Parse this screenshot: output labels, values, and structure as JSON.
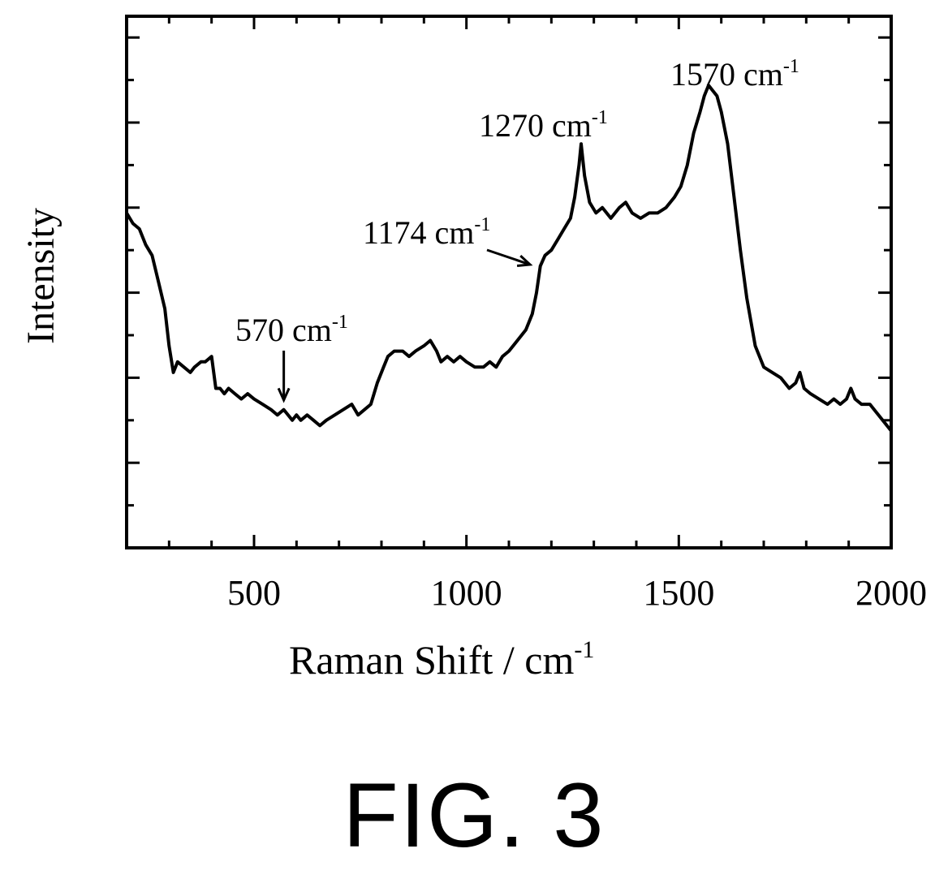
{
  "figure": {
    "label": "FIG. 3"
  },
  "chart_data": {
    "type": "line",
    "xlabel": "Raman Shift / cm",
    "xlabel_superscript": "-1",
    "ylabel": "Intensity",
    "xlim": [
      200,
      2000
    ],
    "ylim": [
      0,
      100
    ],
    "x_ticks": [
      500,
      1000,
      1500,
      2000
    ],
    "y_ticks_shown_without_labels": true,
    "grid": false,
    "line_color": "#000000",
    "annotations": [
      {
        "id": "570",
        "text": "570 cm",
        "sup": "-1",
        "x": 570,
        "arrow": "down"
      },
      {
        "id": "1174",
        "text": "1174 cm",
        "sup": "-1",
        "x": 1174,
        "arrow": "diagonal"
      },
      {
        "id": "1270",
        "text": "1270 cm",
        "sup": "-1",
        "x": 1270,
        "arrow": "none"
      },
      {
        "id": "1570",
        "text": "1570 cm",
        "sup": "-1",
        "x": 1570,
        "arrow": "none"
      }
    ],
    "series": [
      {
        "x": [
          200,
          215,
          230,
          245,
          260,
          275,
          290,
          300,
          310,
          320,
          335,
          350,
          360,
          375,
          385,
          400,
          410,
          420,
          430,
          440,
          455,
          470,
          485,
          500,
          520,
          540,
          555,
          570,
          580,
          590,
          600,
          610,
          625,
          640,
          655,
          670,
          690,
          710,
          730,
          745,
          760,
          775,
          790,
          805,
          815,
          830,
          850,
          865,
          880,
          900,
          915,
          930,
          940,
          955,
          970,
          985,
          1000,
          1020,
          1040,
          1055,
          1070,
          1085,
          1100,
          1120,
          1140,
          1155,
          1165,
          1174,
          1185,
          1200,
          1215,
          1230,
          1245,
          1255,
          1265,
          1270,
          1278,
          1290,
          1305,
          1320,
          1340,
          1360,
          1375,
          1390,
          1410,
          1430,
          1450,
          1470,
          1490,
          1505,
          1520,
          1535,
          1550,
          1560,
          1570,
          1580,
          1590,
          1600,
          1615,
          1630,
          1645,
          1660,
          1680,
          1700,
          1720,
          1740,
          1760,
          1775,
          1785,
          1795,
          1810,
          1830,
          1850,
          1865,
          1880,
          1895,
          1905,
          1915,
          1930,
          1950,
          1970,
          1990,
          2000
        ],
        "y": [
          63,
          61,
          60,
          57,
          55,
          50,
          45,
          38,
          33,
          35,
          34,
          33,
          34,
          35,
          35,
          36,
          30,
          30,
          29,
          30,
          29,
          28,
          29,
          28,
          27,
          26,
          25,
          26,
          25,
          24,
          25,
          24,
          25,
          24,
          23,
          24,
          25,
          26,
          27,
          25,
          26,
          27,
          31,
          34,
          36,
          37,
          37,
          36,
          37,
          38,
          39,
          37,
          35,
          36,
          35,
          36,
          35,
          34,
          34,
          35,
          34,
          36,
          37,
          39,
          41,
          44,
          48,
          53,
          55,
          56,
          58,
          60,
          62,
          66,
          72,
          76,
          70,
          65,
          63,
          64,
          62,
          64,
          65,
          63,
          62,
          63,
          63,
          64,
          66,
          68,
          72,
          78,
          82,
          85,
          87,
          86,
          85,
          82,
          76,
          66,
          56,
          47,
          38,
          34,
          33,
          32,
          30,
          31,
          33,
          30,
          29,
          28,
          27,
          28,
          27,
          28,
          30,
          28,
          27,
          27,
          25,
          23,
          22
        ]
      }
    ]
  }
}
